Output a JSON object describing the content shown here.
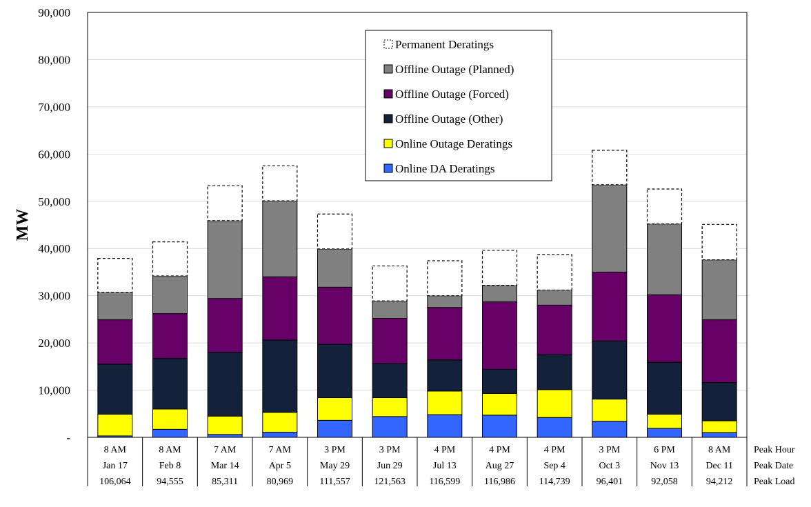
{
  "chart_data": {
    "type": "bar",
    "stacked": true,
    "title": "",
    "xlabel": "",
    "ylabel": "MW",
    "ylim": [
      0,
      90000
    ],
    "yticks": [
      0,
      10000,
      20000,
      30000,
      40000,
      50000,
      60000,
      70000,
      80000,
      90000
    ],
    "ytick_labels": [
      "-",
      "10,000",
      "20,000",
      "30,000",
      "40,000",
      "50,000",
      "60,000",
      "70,000",
      "80,000",
      "90,000"
    ],
    "grid": "horizontal",
    "legend_position": "top-center",
    "legend_order": [
      "Permanent Deratings",
      "Offline Outage (Planned)",
      "Offline Outage (Forced)",
      "Offline Outage (Other)",
      "Online Outage Deratings",
      "Online DA Deratings"
    ],
    "categories": [
      "Jan 17",
      "Feb 8",
      "Mar 14",
      "Apr 5",
      "May 29",
      "Jun 29",
      "Jul 13",
      "Aug 27",
      "Sep 4",
      "Oct 3",
      "Nov 13",
      "Dec 11"
    ],
    "series": [
      {
        "name": "Online DA Deratings",
        "color": "#3366ff",
        "dashed": false,
        "values": [
          300,
          1700,
          600,
          1100,
          3600,
          4400,
          4800,
          4700,
          4200,
          3400,
          1900,
          1000
        ]
      },
      {
        "name": "Online Outage Deratings",
        "color": "#ffff00",
        "dashed": false,
        "values": [
          4600,
          4300,
          3900,
          4200,
          4800,
          4000,
          5000,
          4600,
          5900,
          4700,
          3000,
          2500
        ]
      },
      {
        "name": "Offline Outage (Other)",
        "color": "#14213a",
        "dashed": false,
        "values": [
          10600,
          10700,
          13500,
          15300,
          11300,
          7200,
          6600,
          5100,
          7400,
          12300,
          11000,
          8100
        ]
      },
      {
        "name": "Offline Outage (Forced)",
        "color": "#660066",
        "dashed": false,
        "values": [
          9400,
          9500,
          11400,
          13400,
          12100,
          9600,
          11100,
          14300,
          10500,
          14600,
          14300,
          13300
        ]
      },
      {
        "name": "Offline Outage (Planned)",
        "color": "#808080",
        "dashed": false,
        "values": [
          5800,
          8000,
          16500,
          16100,
          8100,
          3700,
          2500,
          3500,
          3200,
          18500,
          15000,
          12700
        ]
      },
      {
        "name": "Permanent Deratings",
        "color": "#ffffff",
        "dashed": true,
        "values": [
          7200,
          7200,
          7400,
          7400,
          7400,
          7400,
          7400,
          7400,
          7500,
          7300,
          7400,
          7500
        ]
      }
    ],
    "table_rows": [
      {
        "label": "Peak Hour",
        "values": [
          "8 AM",
          "8 AM",
          "7 AM",
          "7 AM",
          "3 PM",
          "3 PM",
          "4 PM",
          "4 PM",
          "4 PM",
          "3 PM",
          "6 PM",
          "8 AM"
        ]
      },
      {
        "label": "Peak Date",
        "values": [
          "Jan 17",
          "Feb 8",
          "Mar 14",
          "Apr 5",
          "May 29",
          "Jun 29",
          "Jul 13",
          "Aug 27",
          "Sep 4",
          "Oct 3",
          "Nov 13",
          "Dec 11"
        ]
      },
      {
        "label": "Peak Load",
        "values": [
          "106,064",
          "94,555",
          "85,311",
          "80,969",
          "111,557",
          "121,563",
          "116,599",
          "116,986",
          "114,739",
          "96,401",
          "92,058",
          "94,212"
        ]
      }
    ]
  }
}
